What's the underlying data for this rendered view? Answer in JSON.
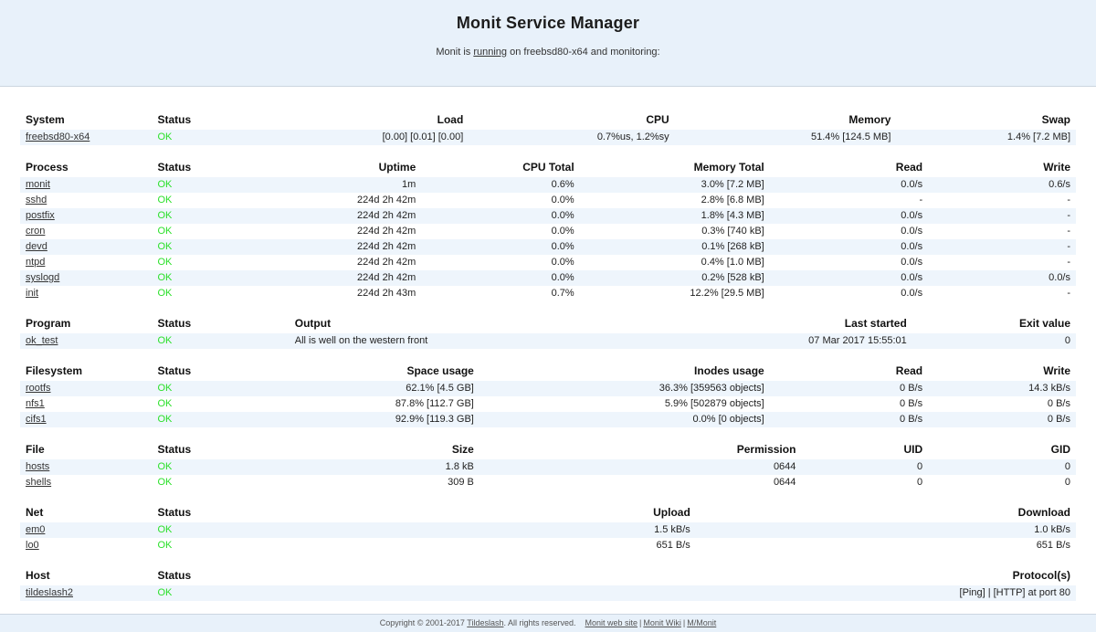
{
  "page": {
    "title": "Monit Service Manager",
    "subtitle": {
      "prefix": "Monit is",
      "running_link": "running",
      "suffix": "on freebsd80-x64 and monitoring:"
    }
  },
  "colors": {
    "panel_bg": "#e8f1fa",
    "row_stripe": "#eef5fc",
    "status_ok_green": "#2ae029"
  },
  "tables": [
    {
      "key": "system",
      "headers": [
        "System",
        "Status",
        "Load",
        "CPU",
        "Memory",
        "Swap"
      ],
      "rows": [
        [
          "freebsd80-x64",
          "OK",
          "[0.00] [0.01] [0.00]",
          "0.7%us, 1.2%sy",
          "51.4% [124.5 MB]",
          "1.4% [7.2 MB]"
        ]
      ]
    },
    {
      "key": "process",
      "headers": [
        "Process",
        "Status",
        "Uptime",
        "CPU Total",
        "Memory Total",
        "Read",
        "Write"
      ],
      "rows": [
        [
          "monit",
          "OK",
          "1m",
          "0.6%",
          "3.0% [7.2 MB]",
          "0.0/s",
          "0.6/s"
        ],
        [
          "sshd",
          "OK",
          "224d 2h 42m",
          "0.0%",
          "2.8% [6.8 MB]",
          "-",
          "-"
        ],
        [
          "postfix",
          "OK",
          "224d 2h 42m",
          "0.0%",
          "1.8% [4.3 MB]",
          "0.0/s",
          "-"
        ],
        [
          "cron",
          "OK",
          "224d 2h 42m",
          "0.0%",
          "0.3% [740 kB]",
          "0.0/s",
          "-"
        ],
        [
          "devd",
          "OK",
          "224d 2h 42m",
          "0.0%",
          "0.1% [268 kB]",
          "0.0/s",
          "-"
        ],
        [
          "ntpd",
          "OK",
          "224d 2h 42m",
          "0.0%",
          "0.4% [1.0 MB]",
          "0.0/s",
          "-"
        ],
        [
          "syslogd",
          "OK",
          "224d 2h 42m",
          "0.0%",
          "0.2% [528 kB]",
          "0.0/s",
          "0.0/s"
        ],
        [
          "init",
          "OK",
          "224d 2h 43m",
          "0.7%",
          "12.2% [29.5 MB]",
          "0.0/s",
          "-"
        ]
      ]
    },
    {
      "key": "program",
      "headers": [
        "Program",
        "Status",
        "Output",
        "Last started",
        "Exit value"
      ],
      "rows": [
        [
          "ok_test",
          "OK",
          "All is well on the western front",
          "07 Mar 2017 15:55:01",
          "0"
        ]
      ]
    },
    {
      "key": "filesystem",
      "headers": [
        "Filesystem",
        "Status",
        "Space usage",
        "Inodes usage",
        "Read",
        "Write"
      ],
      "rows": [
        [
          "rootfs",
          "OK",
          "62.1% [4.5 GB]",
          "36.3% [359563 objects]",
          "0 B/s",
          "14.3 kB/s"
        ],
        [
          "nfs1",
          "OK",
          "87.8% [112.7 GB]",
          "5.9% [502879 objects]",
          "0 B/s",
          "0 B/s"
        ],
        [
          "cifs1",
          "OK",
          "92.9% [119.3 GB]",
          "0.0% [0 objects]",
          "0 B/s",
          "0 B/s"
        ]
      ]
    },
    {
      "key": "file",
      "headers": [
        "File",
        "Status",
        "Size",
        "Permission",
        "UID",
        "GID"
      ],
      "rows": [
        [
          "hosts",
          "OK",
          "1.8 kB",
          "0644",
          "0",
          "0"
        ],
        [
          "shells",
          "OK",
          "309 B",
          "0644",
          "0",
          "0"
        ]
      ]
    },
    {
      "key": "net",
      "headers": [
        "Net",
        "Status",
        "Upload",
        "Download"
      ],
      "rows": [
        [
          "em0",
          "OK",
          "1.5 kB/s",
          "1.0 kB/s"
        ],
        [
          "lo0",
          "OK",
          "651 B/s",
          "651 B/s"
        ]
      ]
    },
    {
      "key": "host",
      "headers": [
        "Host",
        "Status",
        "Protocol(s)"
      ],
      "rows": [
        [
          "tildeslash2",
          "OK",
          "[Ping]  |  [HTTP] at port 80"
        ]
      ]
    }
  ],
  "footer": {
    "copyright_prefix": "Copyright © 2001-2017",
    "tildeslash_link": "Tildeslash",
    "rights_suffix": ". All rights reserved.",
    "links": [
      "Monit web site",
      "Monit Wiki",
      "M/Monit"
    ],
    "link_separator": "|"
  }
}
